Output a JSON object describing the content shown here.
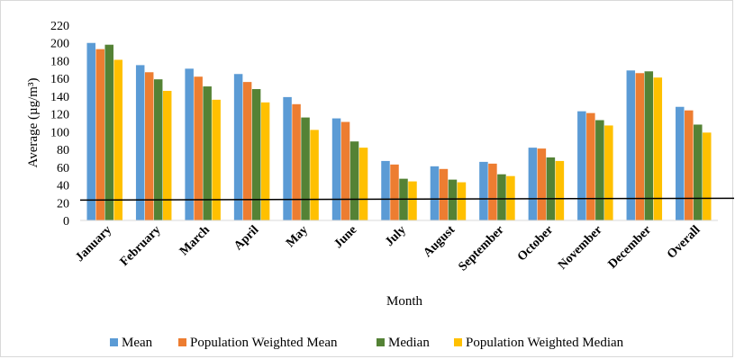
{
  "chart_data": {
    "type": "bar",
    "xlabel": "Month",
    "ylabel": "Average (µg/m³)",
    "ylim": [
      0,
      220
    ],
    "yticks": [
      0,
      20,
      40,
      60,
      80,
      100,
      120,
      140,
      160,
      180,
      200,
      220
    ],
    "grid": false,
    "legend_position": "bottom",
    "categories": [
      "January",
      "February",
      "March",
      "April",
      "May",
      "June",
      "July",
      "August",
      "September",
      "October",
      "November",
      "December",
      "Overall"
    ],
    "series": [
      {
        "name": "Mean",
        "color": "#5b9bd5",
        "values": [
          200,
          175,
          171,
          165,
          139,
          115,
          67,
          61,
          66,
          82,
          123,
          169,
          128
        ]
      },
      {
        "name": "Population Weighted Mean",
        "color": "#ed7d31",
        "values": [
          193,
          167,
          162,
          156,
          131,
          111,
          63,
          58,
          64,
          81,
          121,
          166,
          124
        ]
      },
      {
        "name": "Median",
        "color": "#548235",
        "values": [
          198,
          159,
          151,
          148,
          116,
          89,
          47,
          46,
          52,
          71,
          113,
          168,
          108
        ]
      },
      {
        "name": "Population Weighted Median",
        "color": "#ffc000",
        "values": [
          181,
          146,
          136,
          133,
          102,
          82,
          44,
          43,
          50,
          67,
          107,
          161,
          99
        ]
      }
    ],
    "reference_line": {
      "y": 23,
      "color": "#000000"
    }
  }
}
